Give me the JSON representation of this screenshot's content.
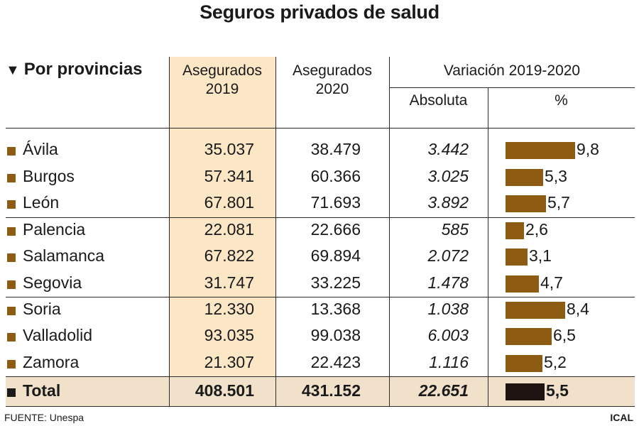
{
  "title": "Seguros privados de salud",
  "headers": {
    "provincias": "Por provincias",
    "aseg2019_l1": "Asegurados",
    "aseg2019_l2": "2019",
    "aseg2020_l1": "Asegurados",
    "aseg2020_l2": "2020",
    "variacion": "Variación 2019-2020",
    "absoluta": "Absoluta",
    "pct": "%"
  },
  "rows": [
    {
      "provincia": "Ávila",
      "aseg2019": "35.037",
      "aseg2020": "38.479",
      "absoluta": "3.442",
      "pct": "9,8"
    },
    {
      "provincia": "Burgos",
      "aseg2019": "57.341",
      "aseg2020": "60.366",
      "absoluta": "3.025",
      "pct": "5,3"
    },
    {
      "provincia": "León",
      "aseg2019": "67.801",
      "aseg2020": "71.693",
      "absoluta": "3.892",
      "pct": "5,7"
    },
    {
      "provincia": "Palencia",
      "aseg2019": "22.081",
      "aseg2020": "22.666",
      "absoluta": "585",
      "pct": "2,6"
    },
    {
      "provincia": "Salamanca",
      "aseg2019": "67.822",
      "aseg2020": "69.894",
      "absoluta": "2.072",
      "pct": "3,1"
    },
    {
      "provincia": "Segovia",
      "aseg2019": "31.747",
      "aseg2020": "33.225",
      "absoluta": "1.478",
      "pct": "4,7"
    },
    {
      "provincia": "Soria",
      "aseg2019": "12.330",
      "aseg2020": "13.368",
      "absoluta": "1.038",
      "pct": "8,4"
    },
    {
      "provincia": "Valladolid",
      "aseg2019": "93.035",
      "aseg2020": "99.038",
      "absoluta": "6.003",
      "pct": "6,5"
    },
    {
      "provincia": "Zamora",
      "aseg2019": "21.307",
      "aseg2020": "22.423",
      "absoluta": "1.116",
      "pct": "5,2"
    },
    {
      "provincia": "Total",
      "aseg2019": "408.501",
      "aseg2020": "431.152",
      "absoluta": "22.651",
      "pct": "5,5"
    }
  ],
  "source": "FUENTE: Unespa",
  "credit": "ICAL",
  "colors": {
    "bar": "#8d5c12",
    "total_bar": "#1f1412",
    "highlight_col": "#fbe7c6",
    "total_row": "#f1e1cb"
  },
  "chart_data": {
    "type": "table",
    "title": "Seguros privados de salud",
    "categories": [
      "Ávila",
      "Burgos",
      "León",
      "Palencia",
      "Salamanca",
      "Segovia",
      "Soria",
      "Valladolid",
      "Zamora",
      "Total"
    ],
    "series": [
      {
        "name": "Asegurados 2019",
        "values": [
          35037,
          57341,
          67801,
          22081,
          67822,
          31747,
          12330,
          93035,
          21307,
          408501
        ]
      },
      {
        "name": "Asegurados 2020",
        "values": [
          38479,
          60366,
          71693,
          22666,
          69894,
          33225,
          13368,
          99038,
          22423,
          431152
        ]
      },
      {
        "name": "Absoluta",
        "values": [
          3442,
          3025,
          3892,
          585,
          2072,
          1478,
          1038,
          6003,
          1116,
          22651
        ]
      },
      {
        "name": "%",
        "values": [
          9.8,
          5.3,
          5.7,
          2.6,
          3.1,
          4.7,
          8.4,
          6.5,
          5.2,
          5.5
        ]
      }
    ]
  }
}
